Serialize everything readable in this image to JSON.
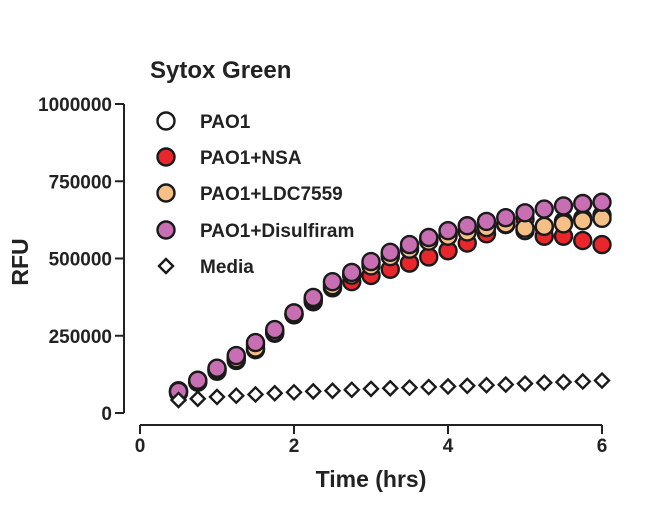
{
  "chart_data": {
    "type": "scatter",
    "title": "Sytox Green",
    "xlabel": "Time (hrs)",
    "ylabel": "RFU",
    "xlim": [
      0,
      6
    ],
    "ylim": [
      0,
      1000000
    ],
    "xticks": [
      "0",
      "2",
      "4",
      "6"
    ],
    "yticks": [
      "0",
      "250000",
      "500000",
      "750000",
      "1000000"
    ],
    "legend_position": "top-left",
    "x": [
      0.5,
      0.75,
      1.0,
      1.25,
      1.5,
      1.75,
      2.0,
      2.25,
      2.5,
      2.75,
      3.0,
      3.25,
      3.5,
      3.75,
      4.0,
      4.25,
      4.5,
      4.75,
      5.0,
      5.25,
      5.5,
      5.75,
      6.0
    ],
    "series": [
      {
        "name": "PAO1",
        "marker": "circle",
        "fill": "#ffffff",
        "values": [
          65000,
          100000,
          135000,
          170000,
          205000,
          258000,
          318000,
          365000,
          420000,
          445000,
          485000,
          515000,
          535000,
          560000,
          575000,
          590000,
          600000,
          610000,
          590000,
          600000,
          620000,
          630000,
          640000
        ]
      },
      {
        "name": "PAO1+NSA",
        "marker": "circle",
        "fill": "#e8262b",
        "values": [
          72000,
          100000,
          140000,
          180000,
          220000,
          265000,
          318000,
          360000,
          405000,
          425000,
          445000,
          465000,
          485000,
          505000,
          525000,
          550000,
          580000,
          610000,
          628000,
          572000,
          572000,
          558000,
          545000
        ]
      },
      {
        "name": "PAO1+LDC7559",
        "marker": "circle",
        "fill": "#f5c086",
        "values": [
          68000,
          104000,
          140000,
          176000,
          210000,
          262000,
          320000,
          368000,
          412000,
          446000,
          476000,
          506000,
          530000,
          556000,
          572000,
          586000,
          600000,
          612000,
          598000,
          604000,
          612000,
          622000,
          630000
        ]
      },
      {
        "name": "PAO1+Disulfiram",
        "marker": "circle",
        "fill": "#c86fb4",
        "values": [
          70000,
          106000,
          145000,
          186000,
          228000,
          270000,
          324000,
          374000,
          425000,
          455000,
          490000,
          520000,
          545000,
          568000,
          590000,
          606000,
          620000,
          632000,
          648000,
          660000,
          670000,
          678000,
          682000
        ]
      },
      {
        "name": "Media",
        "marker": "diamond",
        "fill": "#ffffff",
        "values": [
          42000,
          46000,
          52000,
          56000,
          60000,
          64000,
          67000,
          70000,
          72000,
          75000,
          78000,
          80000,
          82000,
          84000,
          86000,
          88000,
          90000,
          92000,
          95000,
          98000,
          100000,
          102000,
          105000
        ]
      }
    ]
  }
}
